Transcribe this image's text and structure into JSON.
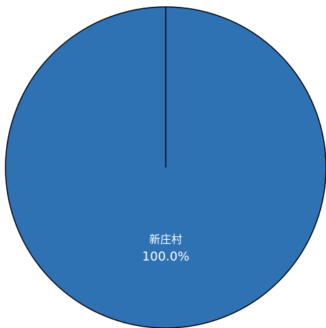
{
  "chart_data": {
    "type": "pie",
    "slices": [
      {
        "label": "新庄村",
        "value": 100.0,
        "percent_label": "100.0%"
      }
    ],
    "colors": [
      "#2f72b4"
    ],
    "legend": "none",
    "grid": false
  }
}
